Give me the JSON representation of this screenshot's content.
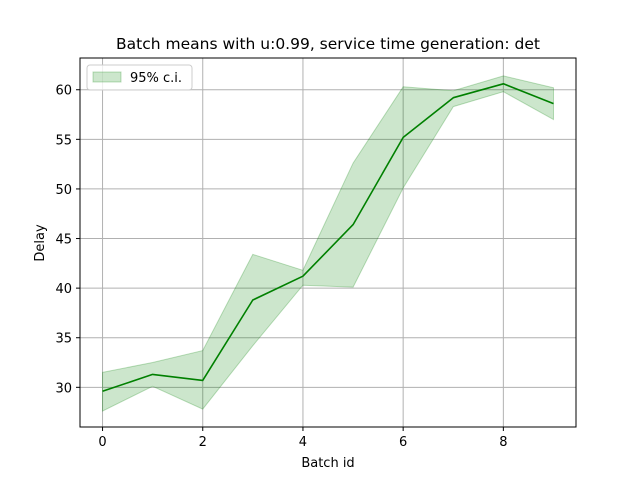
{
  "chart_data": {
    "type": "line",
    "title": "Batch means with u:0.99, service time generation: det",
    "xlabel": "Batch id",
    "ylabel": "Delay",
    "xlim": [
      -0.45,
      9.45
    ],
    "ylim": [
      26.0,
      63.2
    ],
    "xticks": [
      0,
      2,
      4,
      6,
      8
    ],
    "yticks": [
      30,
      35,
      40,
      45,
      50,
      55,
      60
    ],
    "grid": true,
    "legend_position": "top-left",
    "x": [
      0,
      1,
      2,
      3,
      4,
      5,
      6,
      7,
      8,
      9
    ],
    "series": [
      {
        "values": [
          29.6,
          31.3,
          30.7,
          38.8,
          41.2,
          46.4,
          55.2,
          59.2,
          60.6,
          58.6
        ],
        "color": "#008000"
      }
    ],
    "band": {
      "name": "95% c.i.",
      "lower": [
        27.6,
        30.1,
        27.8,
        34.2,
        40.3,
        40.1,
        50.1,
        58.3,
        59.8,
        57.0
      ],
      "upper": [
        31.5,
        32.5,
        33.7,
        43.4,
        41.8,
        52.6,
        60.3,
        59.9,
        61.4,
        60.2
      ],
      "color": "#008000",
      "opacity": 0.2
    }
  }
}
